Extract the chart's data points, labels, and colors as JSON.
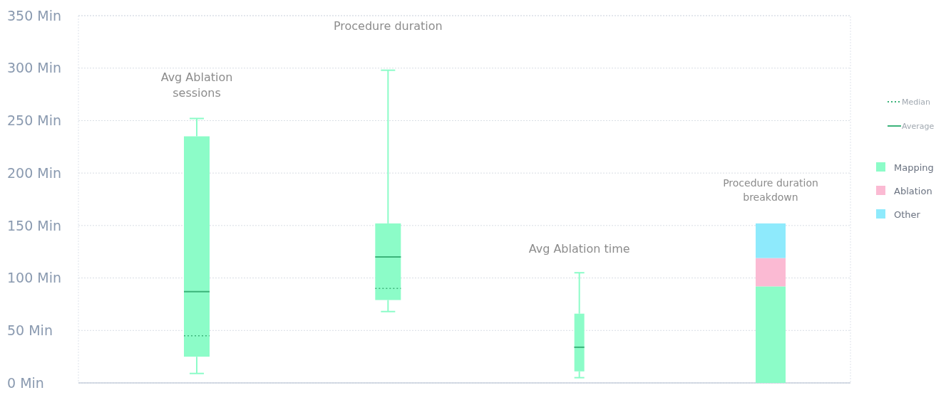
{
  "chart_data": {
    "type": "box",
    "categories": [
      "Avg Ablation sessions",
      "Procedure duration",
      "Avg Ablation time",
      "Procedure duration breakdown"
    ],
    "ylim": [
      0,
      350
    ],
    "yticks": [
      {
        "value": 0,
        "label": "0 Min"
      },
      {
        "value": 50,
        "label": "50 Min"
      },
      {
        "value": 100,
        "label": "100 Min"
      },
      {
        "value": 150,
        "label": "150 Min"
      },
      {
        "value": 200,
        "label": "200 Min"
      },
      {
        "value": 250,
        "label": "250 Min"
      },
      {
        "value": 300,
        "label": "300 Min"
      },
      {
        "value": 350,
        "label": "350 Min"
      }
    ],
    "grid": "y",
    "legend": "right",
    "stacked": true,
    "annotations": [
      "Median",
      "Average"
    ],
    "series": [
      {
        "color": "#8cfcc8",
        "boxes": [
          {
            "low": 9,
            "q1": 25,
            "median": 45,
            "q3": 235,
            "high": 252,
            "mean": 87
          },
          {
            "low": 68,
            "q1": 79,
            "median": 90,
            "q3": 152,
            "high": 298,
            "mean": 120
          },
          {
            "low": 5,
            "q1": 11,
            "median": 34,
            "q3": 66,
            "high": 105,
            "mean": 34
          },
          null
        ]
      },
      {
        "type": "bar",
        "name": "Mapping",
        "color": "#8cfcc8",
        "values": [
          null,
          null,
          null,
          92
        ]
      },
      {
        "type": "bar",
        "name": "Ablation",
        "color": "#fbbad3",
        "values": [
          null,
          null,
          null,
          27
        ]
      },
      {
        "type": "bar",
        "name": "Other",
        "color": "#8eeafc",
        "values": [
          null,
          null,
          null,
          33
        ]
      }
    ]
  }
}
